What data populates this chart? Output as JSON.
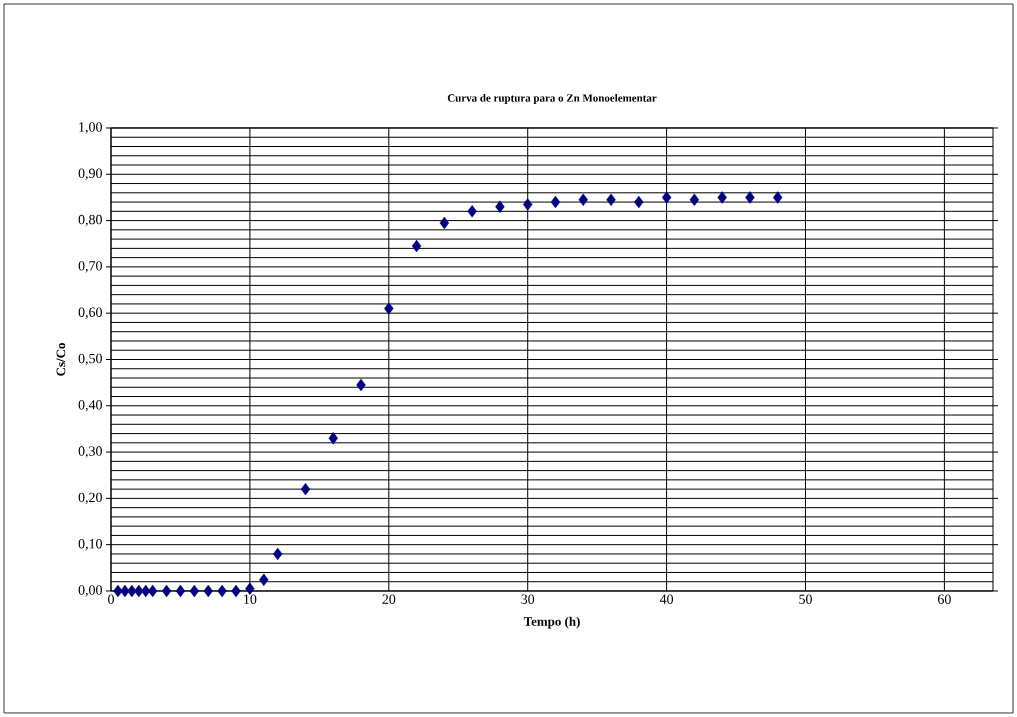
{
  "chart_data": {
    "type": "scatter",
    "title": "**Curva de ruptura para o Zn Monoelementar**",
    "xlabel": "Tempo (h)",
    "ylabel": "Cs/Co",
    "x": [
      0.5,
      1,
      1.5,
      2,
      2.5,
      3,
      4,
      5,
      6,
      7,
      8,
      9,
      10,
      11,
      12,
      14,
      16,
      18,
      20,
      22,
      24,
      26,
      28,
      30,
      32,
      34,
      36,
      38,
      40,
      42,
      44,
      46,
      48
    ],
    "values": [
      0,
      0,
      0,
      0,
      0,
      0,
      0,
      0,
      0,
      0,
      0,
      0,
      0.005,
      0.024,
      0.08,
      0.22,
      0.33,
      0.445,
      0.61,
      0.745,
      0.795,
      0.82,
      0.83,
      0.835,
      0.84,
      0.845,
      0.845,
      0.84,
      0.85,
      0.845,
      0.85,
      0.85,
      0.85
    ],
    "color": "#000080",
    "marker": "diamond",
    "grid": true,
    "xlim": [
      0,
      63.5
    ],
    "xticks": [
      0,
      10,
      20,
      30,
      40,
      50,
      60
    ],
    "ylim": [
      0,
      1
    ],
    "yticks": [
      {
        "value": 0,
        "label": "0,00"
      },
      {
        "value": 0.1,
        "label": "0,10"
      },
      {
        "value": 0.2,
        "label": "0,20"
      },
      {
        "value": 0.3,
        "label": "0,30"
      },
      {
        "value": 0.4,
        "label": "0,40"
      },
      {
        "value": 0.5,
        "label": "0,50"
      },
      {
        "value": 0.6,
        "label": "0,60"
      },
      {
        "value": 0.7,
        "label": "0,70"
      },
      {
        "value": 0.8,
        "label": "0,80"
      },
      {
        "value": 0.9,
        "label": "0,90"
      },
      {
        "value": 1,
        "label": "1,00"
      }
    ]
  }
}
